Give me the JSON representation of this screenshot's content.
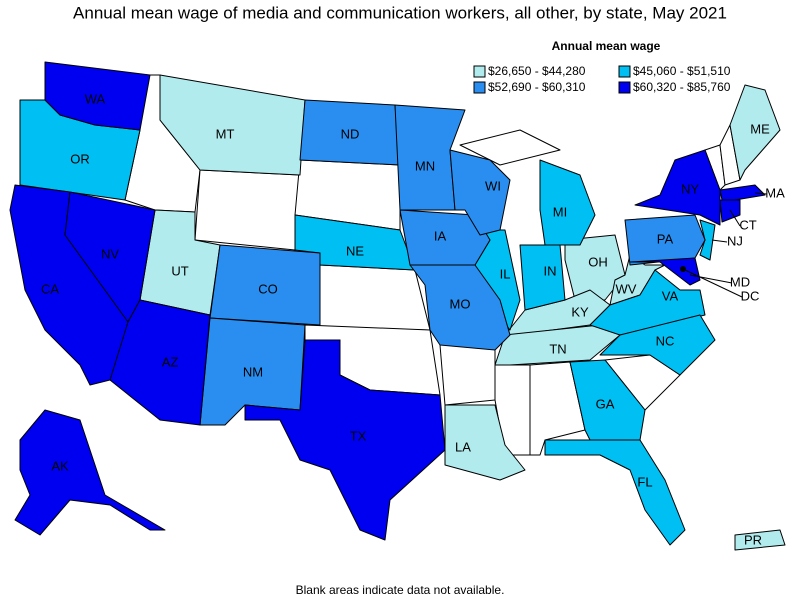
{
  "title": "Annual mean wage of media and communication workers, all other, by state, May 2021",
  "legend": {
    "title": "Annual mean wage",
    "items": [
      {
        "label": "$26,650 - $44,280",
        "color": "#b2ebee",
        "states": [
          "MT",
          "UT",
          "OH",
          "KY",
          "WV",
          "TN",
          "LA",
          "ME",
          "PR"
        ]
      },
      {
        "label": "$45,060 - $51,510",
        "color": "#00bff2",
        "states": [
          "OR",
          "NE",
          "IL",
          "IN",
          "MI",
          "NJ",
          "VA",
          "NC",
          "GA",
          "FL"
        ]
      },
      {
        "label": "$52,690 - $60,310",
        "color": "#2a8ef0",
        "states": [
          "ND",
          "CO",
          "NM",
          "MN",
          "IA",
          "MO",
          "WI",
          "PA"
        ]
      },
      {
        "label": "$60,320 - $85,760",
        "color": "#0000f0",
        "states": [
          "WA",
          "CA",
          "NV",
          "AZ",
          "TX",
          "AK",
          "NY",
          "MA",
          "CT",
          "MD",
          "DC"
        ]
      }
    ]
  },
  "footnote": "Blank areas indicate data not available."
}
